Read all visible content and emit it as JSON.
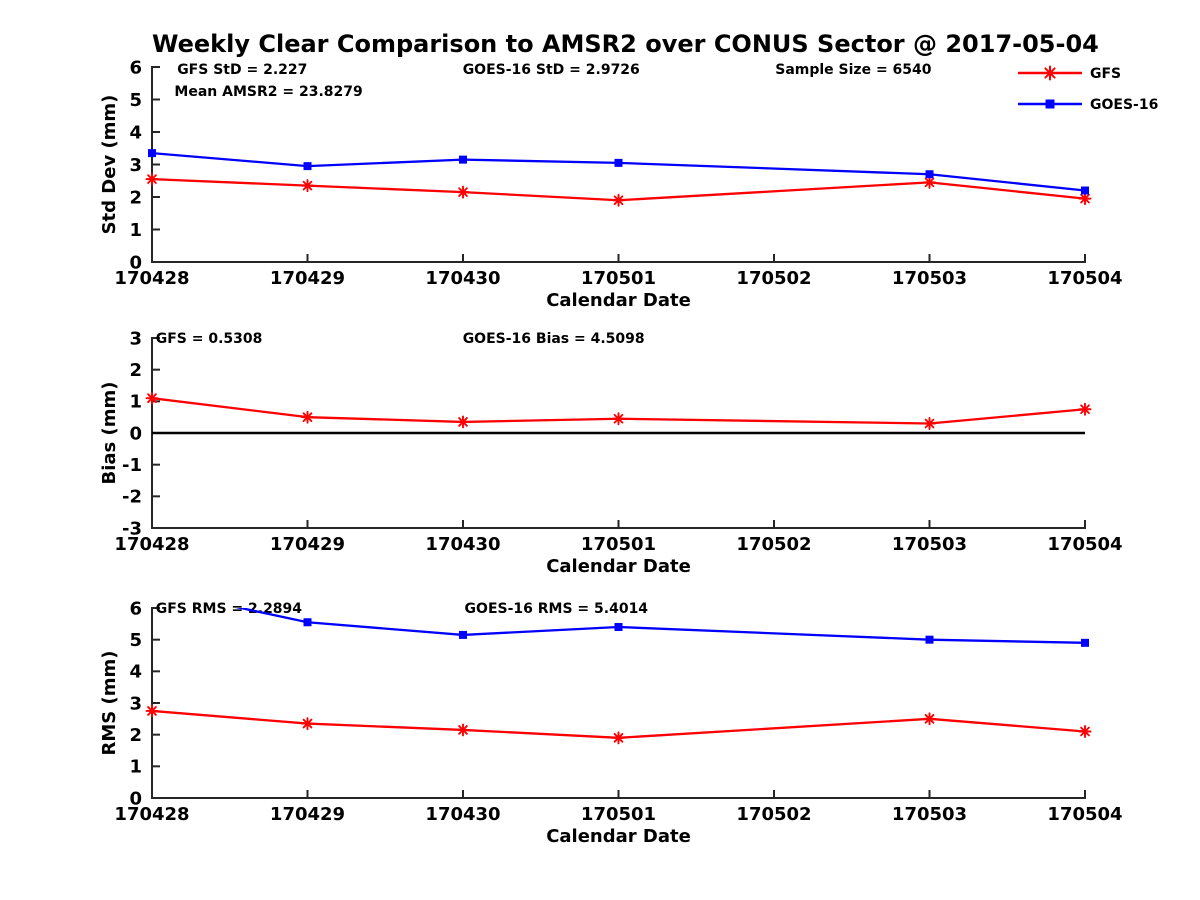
{
  "title": "Weekly Clear Comparison to AMSR2 over CONUS Sector @ 2017-05-04",
  "colors": {
    "gfs_red": "#ff0000",
    "goes16_blue": "#0000ff",
    "zero_line": "#000000",
    "axis": "#262626"
  },
  "legend": {
    "items": [
      {
        "label": "GFS",
        "color": "#ff0000",
        "marker": "asterisk"
      },
      {
        "label": "GOES-16",
        "color": "#0000ff",
        "marker": "square"
      }
    ]
  },
  "chart_data": [
    {
      "type": "line",
      "id": "std-dev",
      "ylabel": "Std Dev (mm)",
      "xlabel": "Calendar Date",
      "categories": [
        "170428",
        "170429",
        "170430",
        "170501",
        "170502",
        "170503",
        "170504"
      ],
      "ylim": [
        0,
        6
      ],
      "yticks": [
        0,
        1,
        2,
        3,
        4,
        5,
        6
      ],
      "grid": false,
      "annotations": [
        {
          "text": "GFS StD = 2.227",
          "fx": 0.027,
          "fy": 0.01
        },
        {
          "text": "Mean AMSR2 = 23.8279",
          "fx": 0.024,
          "fy": 0.123
        },
        {
          "text": "GOES-16 StD = 2.9726",
          "fx": 0.333,
          "fy": 0.01
        },
        {
          "text": "Sample Size = 6540",
          "fx": 0.668,
          "fy": 0.01
        }
      ],
      "series": [
        {
          "name": "GFS",
          "color": "#ff0000",
          "marker": "asterisk",
          "values": [
            2.55,
            2.35,
            2.15,
            1.9,
            null,
            2.45,
            1.95
          ]
        },
        {
          "name": "GOES-16",
          "color": "#0000ff",
          "marker": "square",
          "values": [
            3.35,
            2.95,
            3.15,
            3.05,
            null,
            2.7,
            2.2
          ]
        }
      ]
    },
    {
      "type": "line",
      "id": "bias",
      "ylabel": "Bias (mm)",
      "xlabel": "Calendar Date",
      "categories": [
        "170428",
        "170429",
        "170430",
        "170501",
        "170502",
        "170503",
        "170504"
      ],
      "ylim": [
        -3,
        3
      ],
      "yticks": [
        -3,
        -2,
        -1,
        0,
        1,
        2,
        3
      ],
      "grid": false,
      "zero_line": true,
      "annotations": [
        {
          "text": "GFS = 0.5308",
          "fx": 0.004,
          "fy": 0.0
        },
        {
          "text": "GOES-16 Bias  = 4.5098",
          "fx": 0.333,
          "fy": 0.0
        }
      ],
      "series": [
        {
          "name": "GFS",
          "color": "#ff0000",
          "marker": "asterisk",
          "values": [
            1.1,
            0.5,
            0.35,
            0.45,
            null,
            0.3,
            0.75
          ]
        }
      ]
    },
    {
      "type": "line",
      "id": "rms",
      "ylabel": "RMS (mm)",
      "xlabel": "Calendar Date",
      "categories": [
        "170428",
        "170429",
        "170430",
        "170501",
        "170502",
        "170503",
        "170504"
      ],
      "ylim": [
        0,
        6
      ],
      "yticks": [
        0,
        1,
        2,
        3,
        4,
        5,
        6
      ],
      "grid": false,
      "annotations": [
        {
          "text": "GFS RMS = 2.2894",
          "fx": 0.004,
          "fy": 0.0
        },
        {
          "text": "GOES-16 RMS = 5.4014",
          "fx": 0.335,
          "fy": 0.0
        }
      ],
      "series": [
        {
          "name": "GFS",
          "color": "#ff0000",
          "marker": "asterisk",
          "values": [
            2.75,
            2.35,
            2.15,
            1.9,
            null,
            2.5,
            2.1
          ]
        },
        {
          "name": "GOES-16",
          "color": "#0000ff",
          "marker": "square",
          "values": [
            6.6,
            5.55,
            5.15,
            5.4,
            null,
            5.0,
            4.9
          ]
        }
      ]
    }
  ]
}
